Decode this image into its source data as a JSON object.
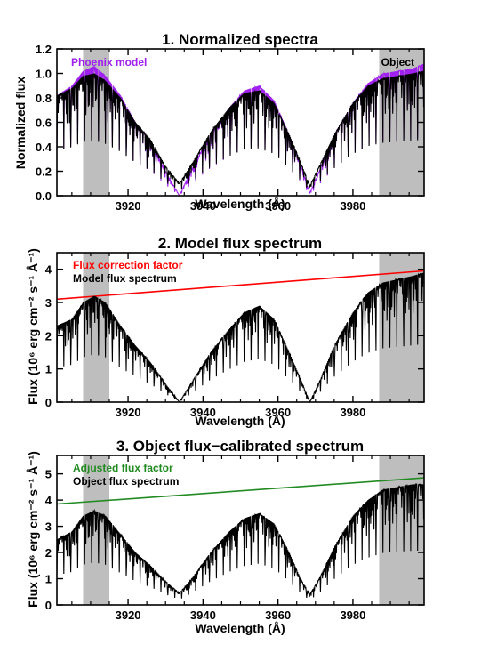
{
  "chart_data": [
    {
      "type": "line",
      "title": "1. Normalized spectra",
      "xlabel": "Wavelength (Å)",
      "ylabel": "Normalized flux",
      "xlim": [
        3901,
        3999
      ],
      "ylim": [
        0.0,
        1.2
      ],
      "xticks": [
        3920,
        3940,
        3960,
        3980
      ],
      "yticks": [
        0.0,
        0.2,
        0.4,
        0.6,
        0.8,
        1.0,
        1.2
      ],
      "ytick_labels": [
        "0.0",
        "0.2",
        "0.4",
        "0.6",
        "0.8",
        "1.0",
        "1.2"
      ],
      "shaded_regions": [
        [
          3908,
          3915
        ],
        [
          3987,
          3999
        ]
      ],
      "annotations": [
        {
          "text": "Phoenix model",
          "color": "#a020f0",
          "position": "top-left"
        },
        {
          "text": "Object",
          "color": "#000000",
          "position": "top-right"
        }
      ],
      "series": [
        {
          "name": "Phoenix model",
          "color": "#a020f0",
          "x": [
            3901,
            3905,
            3908,
            3911,
            3914,
            3918,
            3922,
            3926,
            3930,
            3933.7,
            3937,
            3942,
            3947,
            3951,
            3955,
            3959,
            3963,
            3966,
            3968.5,
            3971,
            3975,
            3980,
            3984,
            3988,
            3992,
            3996,
            3999
          ],
          "y": [
            0.82,
            0.9,
            1.02,
            1.06,
            0.98,
            0.82,
            0.6,
            0.45,
            0.2,
            0.0,
            0.22,
            0.5,
            0.72,
            0.86,
            0.9,
            0.78,
            0.5,
            0.26,
            0.02,
            0.2,
            0.5,
            0.76,
            0.92,
            1.0,
            1.02,
            1.04,
            1.08
          ]
        },
        {
          "name": "Object",
          "color": "#000000",
          "x": [
            3901,
            3905,
            3908,
            3911,
            3914,
            3918,
            3922,
            3926,
            3930,
            3933.7,
            3937,
            3942,
            3947,
            3951,
            3955,
            3959,
            3963,
            3966,
            3968.5,
            3971,
            3975,
            3980,
            3984,
            3988,
            3992,
            3996,
            3999
          ],
          "y": [
            0.82,
            0.88,
            0.98,
            1.0,
            0.94,
            0.8,
            0.6,
            0.46,
            0.24,
            0.1,
            0.26,
            0.52,
            0.72,
            0.84,
            0.86,
            0.76,
            0.5,
            0.28,
            0.08,
            0.24,
            0.5,
            0.76,
            0.9,
            0.96,
            0.98,
            1.0,
            1.02
          ]
        }
      ]
    },
    {
      "type": "line",
      "title": "2. Model flux spectrum",
      "xlabel": "Wavelength (Å)",
      "ylabel": "Flux (10⁶ erg cm⁻² s⁻¹ Å⁻¹)",
      "xlim": [
        3901,
        3999
      ],
      "ylim": [
        0,
        4.5
      ],
      "xticks": [
        3920,
        3940,
        3960,
        3980
      ],
      "yticks": [
        0,
        1,
        2,
        3,
        4
      ],
      "ytick_labels": [
        "0",
        "1",
        "2",
        "3",
        "4"
      ],
      "shaded_regions": [
        [
          3908,
          3915
        ],
        [
          3987,
          3999
        ]
      ],
      "annotations": [
        {
          "text": "Flux correction factor",
          "color": "#ff0000",
          "position": "top-left"
        },
        {
          "text": "Model flux spectrum",
          "color": "#000000",
          "position": "top-left"
        }
      ],
      "series": [
        {
          "name": "Flux correction factor",
          "color": "#ff0000",
          "x": [
            3901,
            3999
          ],
          "y": [
            3.1,
            3.95
          ]
        },
        {
          "name": "Model flux spectrum",
          "color": "#000000",
          "x": [
            3901,
            3905,
            3908,
            3911,
            3914,
            3918,
            3922,
            3926,
            3930,
            3933.7,
            3937,
            3942,
            3947,
            3951,
            3955,
            3959,
            3963,
            3966,
            3968.5,
            3971,
            3975,
            3980,
            3984,
            3988,
            3992,
            3996,
            3999
          ],
          "y": [
            2.3,
            2.5,
            3.0,
            3.2,
            3.0,
            2.3,
            1.7,
            1.2,
            0.55,
            0.0,
            0.6,
            1.5,
            2.2,
            2.7,
            2.9,
            2.5,
            1.5,
            0.7,
            0.0,
            0.6,
            1.7,
            2.7,
            3.3,
            3.6,
            3.7,
            3.8,
            3.9
          ]
        }
      ]
    },
    {
      "type": "line",
      "title": "3. Object flux−calibrated spectrum",
      "xlabel": "Wavelength (Å)",
      "ylabel": "Flux (10⁶ erg cm⁻² s⁻¹ Å⁻¹)",
      "xlim": [
        3901,
        3999
      ],
      "ylim": [
        0,
        5.7
      ],
      "xticks": [
        3920,
        3940,
        3960,
        3980
      ],
      "yticks": [
        0,
        1,
        2,
        3,
        4,
        5
      ],
      "ytick_labels": [
        "0",
        "1",
        "2",
        "3",
        "4",
        "5"
      ],
      "shaded_regions": [
        [
          3908,
          3915
        ],
        [
          3987,
          3999
        ]
      ],
      "annotations": [
        {
          "text": "Adjusted flux factor",
          "color": "#228b22",
          "position": "top-left"
        },
        {
          "text": "Object flux spectrum",
          "color": "#000000",
          "position": "top-left"
        }
      ],
      "series": [
        {
          "name": "Adjusted flux factor",
          "color": "#228b22",
          "x": [
            3901,
            3999
          ],
          "y": [
            3.85,
            4.85
          ]
        },
        {
          "name": "Object flux spectrum",
          "color": "#000000",
          "x": [
            3901,
            3905,
            3908,
            3911,
            3914,
            3918,
            3922,
            3926,
            3930,
            3933.7,
            3937,
            3942,
            3947,
            3951,
            3955,
            3959,
            3963,
            3966,
            3968.5,
            3971,
            3975,
            3980,
            3984,
            3988,
            3992,
            3996,
            3999
          ],
          "y": [
            2.5,
            2.8,
            3.4,
            3.6,
            3.4,
            2.7,
            2.0,
            1.5,
            0.9,
            0.45,
            1.0,
            2.0,
            2.8,
            3.3,
            3.5,
            3.1,
            2.0,
            1.0,
            0.4,
            1.0,
            2.2,
            3.4,
            4.0,
            4.4,
            4.5,
            4.6,
            4.6
          ]
        }
      ]
    }
  ]
}
